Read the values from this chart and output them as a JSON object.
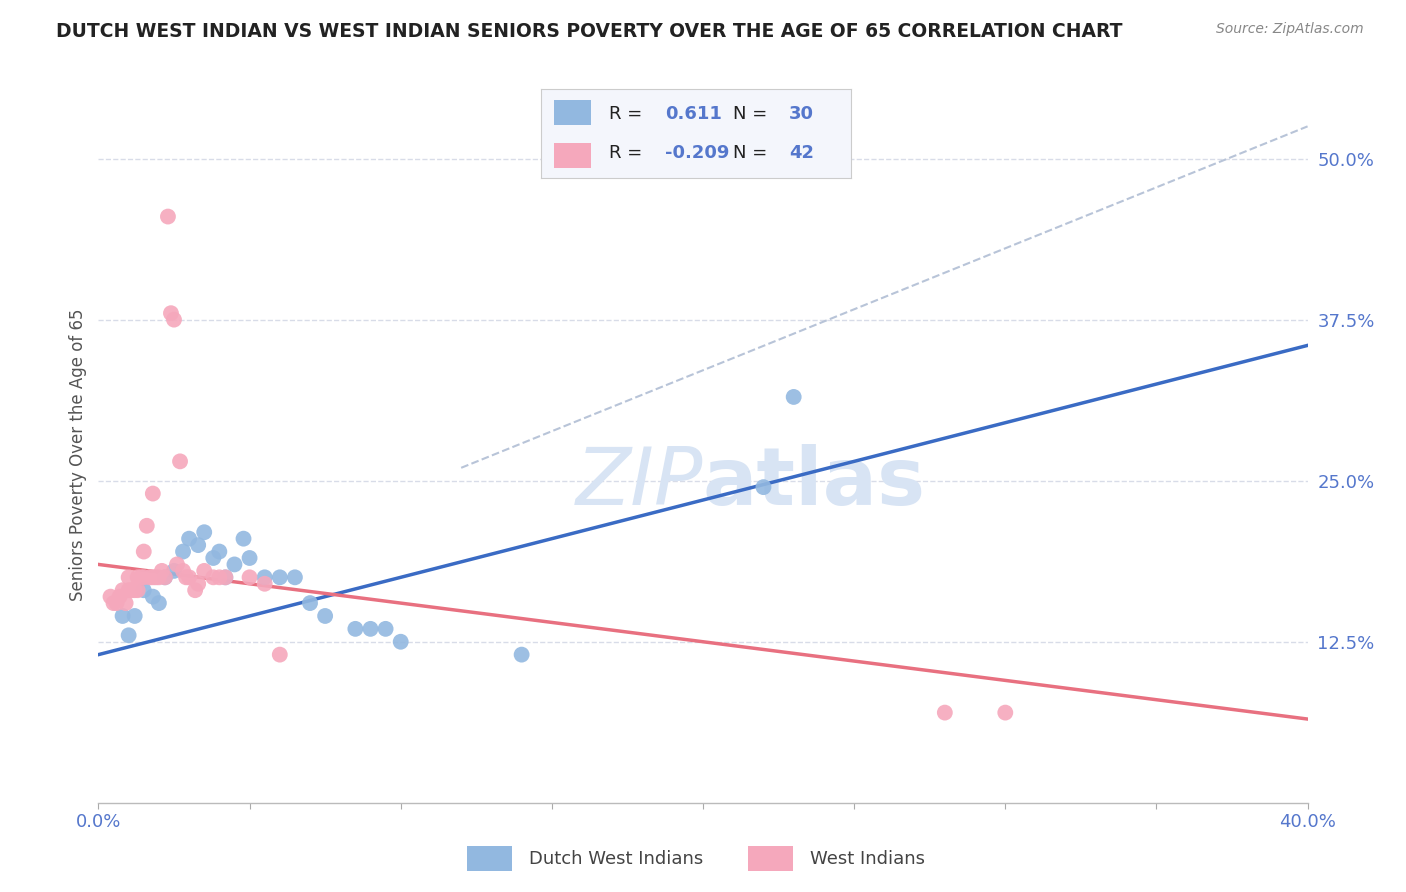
{
  "title": "DUTCH WEST INDIAN VS WEST INDIAN SENIORS POVERTY OVER THE AGE OF 65 CORRELATION CHART",
  "source": "Source: ZipAtlas.com",
  "xlabel_label": "Dutch West Indians",
  "xlabel_label2": "West Indians",
  "ylabel": "Seniors Poverty Over the Age of 65",
  "xlim": [
    0.0,
    0.4
  ],
  "ylim": [
    0.0,
    0.54
  ],
  "xtick_vals": [
    0.0,
    0.05,
    0.1,
    0.15,
    0.2,
    0.25,
    0.3,
    0.35,
    0.4
  ],
  "ytick_right_vals": [
    0.5,
    0.375,
    0.25,
    0.125
  ],
  "ytick_labels_right": [
    "50.0%",
    "37.5%",
    "25.0%",
    "12.5%"
  ],
  "r_blue": "0.611",
  "n_blue": "30",
  "r_pink": "-0.209",
  "n_pink": "42",
  "blue_color": "#92b8e0",
  "pink_color": "#f5a8bc",
  "blue_line_color": "#3a6bc4",
  "pink_line_color": "#e87080",
  "dashed_line_color": "#b8c4d8",
  "watermark_color": "#d8e4f4",
  "blue_scatter": [
    [
      0.008,
      0.145
    ],
    [
      0.01,
      0.13
    ],
    [
      0.012,
      0.145
    ],
    [
      0.015,
      0.165
    ],
    [
      0.018,
      0.16
    ],
    [
      0.02,
      0.155
    ],
    [
      0.022,
      0.175
    ],
    [
      0.025,
      0.18
    ],
    [
      0.028,
      0.195
    ],
    [
      0.03,
      0.205
    ],
    [
      0.033,
      0.2
    ],
    [
      0.035,
      0.21
    ],
    [
      0.038,
      0.19
    ],
    [
      0.04,
      0.195
    ],
    [
      0.042,
      0.175
    ],
    [
      0.045,
      0.185
    ],
    [
      0.048,
      0.205
    ],
    [
      0.05,
      0.19
    ],
    [
      0.055,
      0.175
    ],
    [
      0.06,
      0.175
    ],
    [
      0.065,
      0.175
    ],
    [
      0.07,
      0.155
    ],
    [
      0.075,
      0.145
    ],
    [
      0.085,
      0.135
    ],
    [
      0.09,
      0.135
    ],
    [
      0.095,
      0.135
    ],
    [
      0.1,
      0.125
    ],
    [
      0.14,
      0.115
    ],
    [
      0.22,
      0.245
    ],
    [
      0.23,
      0.315
    ]
  ],
  "pink_scatter": [
    [
      0.004,
      0.16
    ],
    [
      0.005,
      0.155
    ],
    [
      0.006,
      0.155
    ],
    [
      0.007,
      0.16
    ],
    [
      0.008,
      0.165
    ],
    [
      0.009,
      0.155
    ],
    [
      0.01,
      0.165
    ],
    [
      0.01,
      0.175
    ],
    [
      0.011,
      0.165
    ],
    [
      0.012,
      0.165
    ],
    [
      0.013,
      0.175
    ],
    [
      0.013,
      0.165
    ],
    [
      0.014,
      0.175
    ],
    [
      0.015,
      0.175
    ],
    [
      0.015,
      0.195
    ],
    [
      0.016,
      0.215
    ],
    [
      0.017,
      0.175
    ],
    [
      0.018,
      0.175
    ],
    [
      0.018,
      0.24
    ],
    [
      0.019,
      0.175
    ],
    [
      0.02,
      0.175
    ],
    [
      0.021,
      0.18
    ],
    [
      0.022,
      0.175
    ],
    [
      0.023,
      0.455
    ],
    [
      0.024,
      0.38
    ],
    [
      0.025,
      0.375
    ],
    [
      0.026,
      0.185
    ],
    [
      0.027,
      0.265
    ],
    [
      0.028,
      0.18
    ],
    [
      0.029,
      0.175
    ],
    [
      0.03,
      0.175
    ],
    [
      0.032,
      0.165
    ],
    [
      0.033,
      0.17
    ],
    [
      0.035,
      0.18
    ],
    [
      0.038,
      0.175
    ],
    [
      0.04,
      0.175
    ],
    [
      0.042,
      0.175
    ],
    [
      0.05,
      0.175
    ],
    [
      0.055,
      0.17
    ],
    [
      0.06,
      0.115
    ],
    [
      0.28,
      0.07
    ],
    [
      0.3,
      0.07
    ]
  ],
  "blue_line_x": [
    0.0,
    0.4
  ],
  "blue_line_y": [
    0.115,
    0.355
  ],
  "pink_line_x": [
    0.0,
    0.4
  ],
  "pink_line_y": [
    0.185,
    0.065
  ],
  "dashed_line_x": [
    0.12,
    0.4
  ],
  "dashed_line_y": [
    0.26,
    0.525
  ],
  "grid_color": "#d8dce8",
  "background_color": "#ffffff",
  "legend_box_color": "#f4f6fc",
  "tick_color": "#5577cc",
  "title_color": "#222222",
  "source_color": "#888888",
  "ylabel_color": "#555555"
}
